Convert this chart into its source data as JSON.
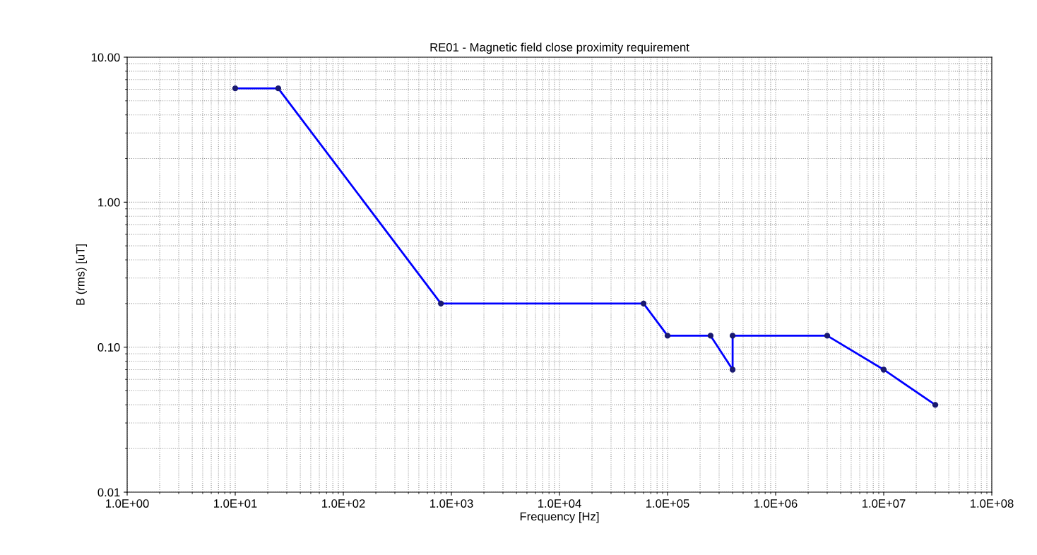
{
  "chart_data": {
    "type": "line",
    "title": "RE01 - Magnetic field close proximity requirement",
    "xlabel": "Frequency [Hz]",
    "ylabel": "B (rms) [uT]",
    "log": "xy",
    "grid": true,
    "marker": "circle",
    "line_style": "solid",
    "xlim": [
      1,
      100000000
    ],
    "ylim": [
      0.01,
      10
    ],
    "xticks": [
      {
        "value": 1,
        "label": "1.0E+00"
      },
      {
        "value": 10,
        "label": "1.0E+01"
      },
      {
        "value": 100,
        "label": "1.0E+02"
      },
      {
        "value": 1000,
        "label": "1.0E+03"
      },
      {
        "value": 10000,
        "label": "1.0E+04"
      },
      {
        "value": 100000,
        "label": "1.0E+05"
      },
      {
        "value": 1000000,
        "label": "1.0E+06"
      },
      {
        "value": 10000000,
        "label": "1.0E+07"
      },
      {
        "value": 100000000,
        "label": "1.0E+08"
      }
    ],
    "yticks": [
      {
        "value": 0.01,
        "label": "0.01"
      },
      {
        "value": 0.1,
        "label": "0.10"
      },
      {
        "value": 1,
        "label": "1.00"
      },
      {
        "value": 10,
        "label": "10.00"
      }
    ],
    "x": [
      10,
      25,
      800,
      60000,
      100000,
      250000,
      400000,
      400000,
      3000000,
      10000000,
      30000000
    ],
    "series": [
      {
        "color": "#0000ff",
        "values": [
          6.1,
          6.1,
          0.2,
          0.2,
          0.12,
          0.12,
          0.07,
          0.12,
          0.12,
          0.07,
          0.04
        ]
      }
    ]
  }
}
